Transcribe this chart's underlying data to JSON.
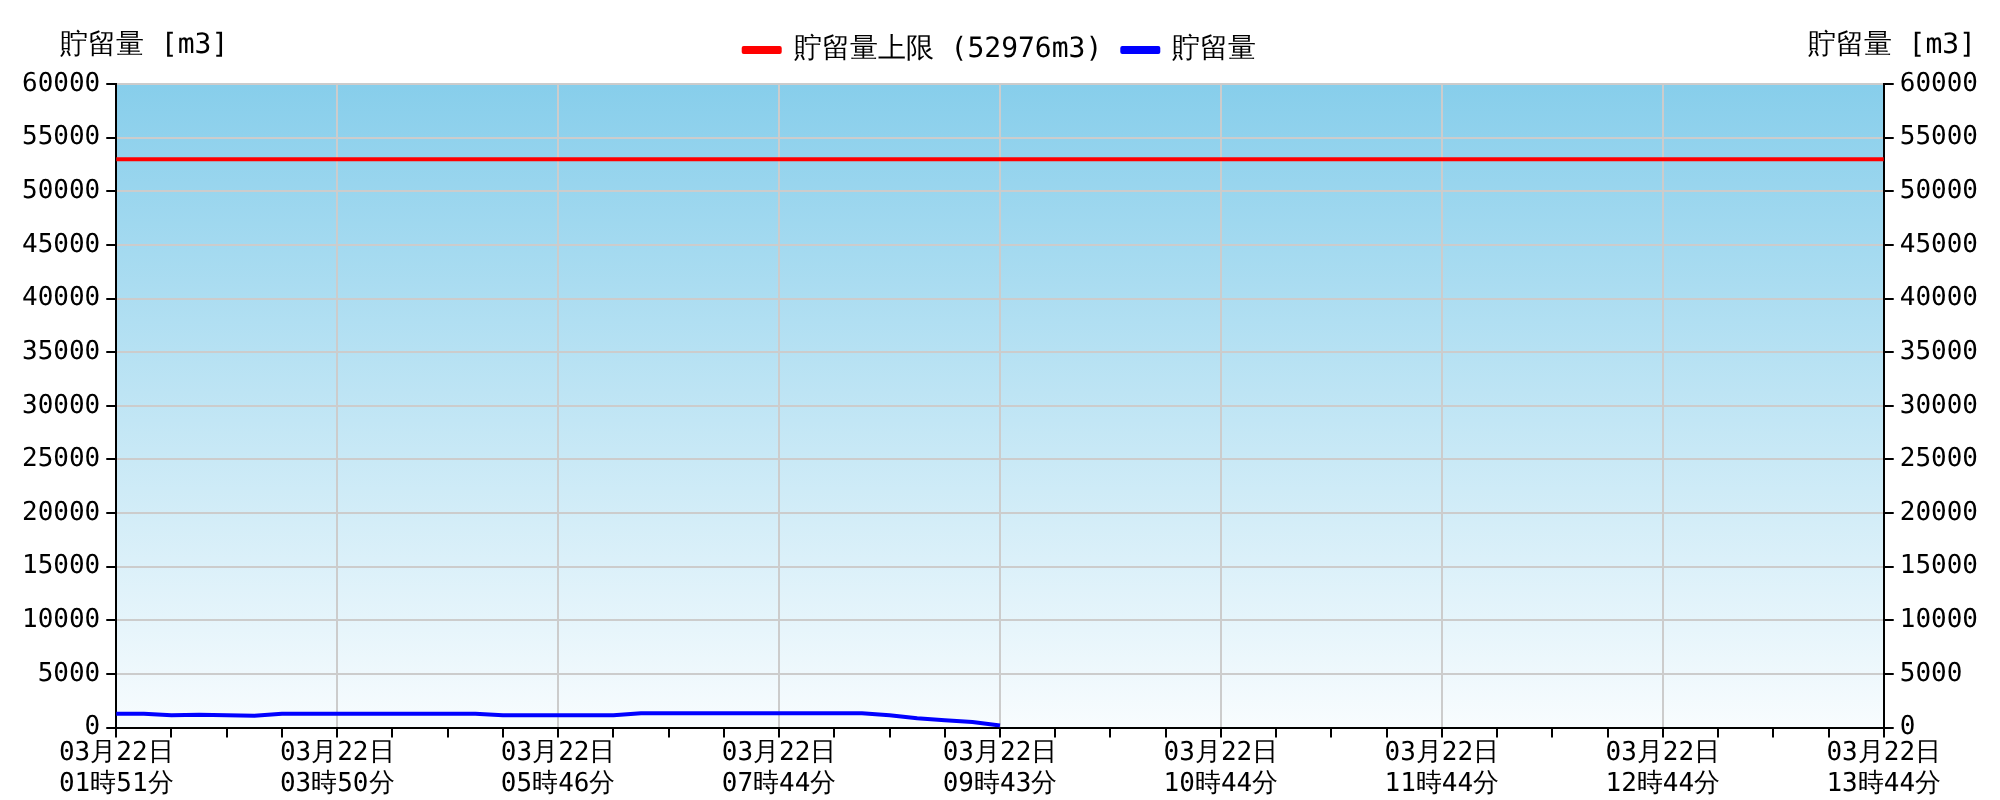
{
  "chart_data": {
    "type": "line",
    "ylabel": "貯留量 [m3]",
    "y2label": "貯留量 [m3]",
    "categories": [
      "03月22日\n01時51分",
      null,
      null,
      null,
      null,
      null,
      null,
      null,
      "03月22日\n03時50分",
      null,
      null,
      null,
      null,
      null,
      null,
      null,
      "03月22日\n05時46分",
      null,
      null,
      null,
      null,
      null,
      null,
      null,
      "03月22日\n07時44分",
      null,
      null,
      null,
      null,
      null,
      null,
      null,
      "03月22日\n09時43分",
      null,
      null,
      null,
      null,
      null,
      null,
      null,
      "03月22日\n10時44分",
      null,
      null,
      null,
      null,
      null,
      null,
      null,
      "03月22日\n11時44分",
      null,
      null,
      null,
      null,
      null,
      null,
      null,
      "03月22日\n12時44分",
      null,
      null,
      null,
      null,
      null,
      null,
      null,
      "03月22日\n13時44分"
    ],
    "series": [
      {
        "name": "貯留量上限 (52976m3)",
        "color": "#ff0000",
        "values": [
          52976,
          52976,
          52976,
          52976,
          52976,
          52976,
          52976,
          52976,
          52976,
          52976,
          52976,
          52976,
          52976,
          52976,
          52976,
          52976,
          52976,
          52976,
          52976,
          52976,
          52976,
          52976,
          52976,
          52976,
          52976,
          52976,
          52976,
          52976,
          52976,
          52976,
          52976,
          52976,
          52976,
          52976,
          52976,
          52976,
          52976,
          52976,
          52976,
          52976,
          52976,
          52976,
          52976,
          52976,
          52976,
          52976,
          52976,
          52976,
          52976,
          52976,
          52976,
          52976,
          52976,
          52976,
          52976,
          52976,
          52976,
          52976,
          52976,
          52976,
          52976,
          52976,
          52976,
          52976,
          52976
        ]
      },
      {
        "name": "貯留量",
        "color": "#0000ff",
        "values": [
          1300,
          1300,
          1150,
          1200,
          1150,
          1100,
          1300,
          1300,
          1300,
          1300,
          1300,
          1300,
          1300,
          1300,
          1150,
          1150,
          1150,
          1150,
          1150,
          1330,
          1330,
          1330,
          1330,
          1330,
          1330,
          1330,
          1330,
          1330,
          1150,
          870,
          680,
          520,
          200,
          null,
          null,
          null,
          null,
          null,
          null,
          null,
          null,
          null,
          null,
          null,
          null,
          null,
          null,
          null,
          null,
          null,
          null,
          null,
          null,
          null,
          null,
          null,
          null,
          null,
          null,
          null,
          null,
          null,
          null,
          null,
          null
        ]
      }
    ],
    "ylim": [
      0,
      60000
    ],
    "yticks": [
      0,
      5000,
      10000,
      15000,
      20000,
      25000,
      30000,
      35000,
      40000,
      45000,
      50000,
      55000,
      60000
    ],
    "y2lim": [
      0,
      60000
    ],
    "y2ticks": [
      0,
      5000,
      10000,
      15000,
      20000,
      25000,
      30000,
      35000,
      40000,
      45000,
      50000,
      55000,
      60000
    ],
    "grid": true,
    "legend": "top",
    "marker": "none",
    "line_style": "solid"
  }
}
